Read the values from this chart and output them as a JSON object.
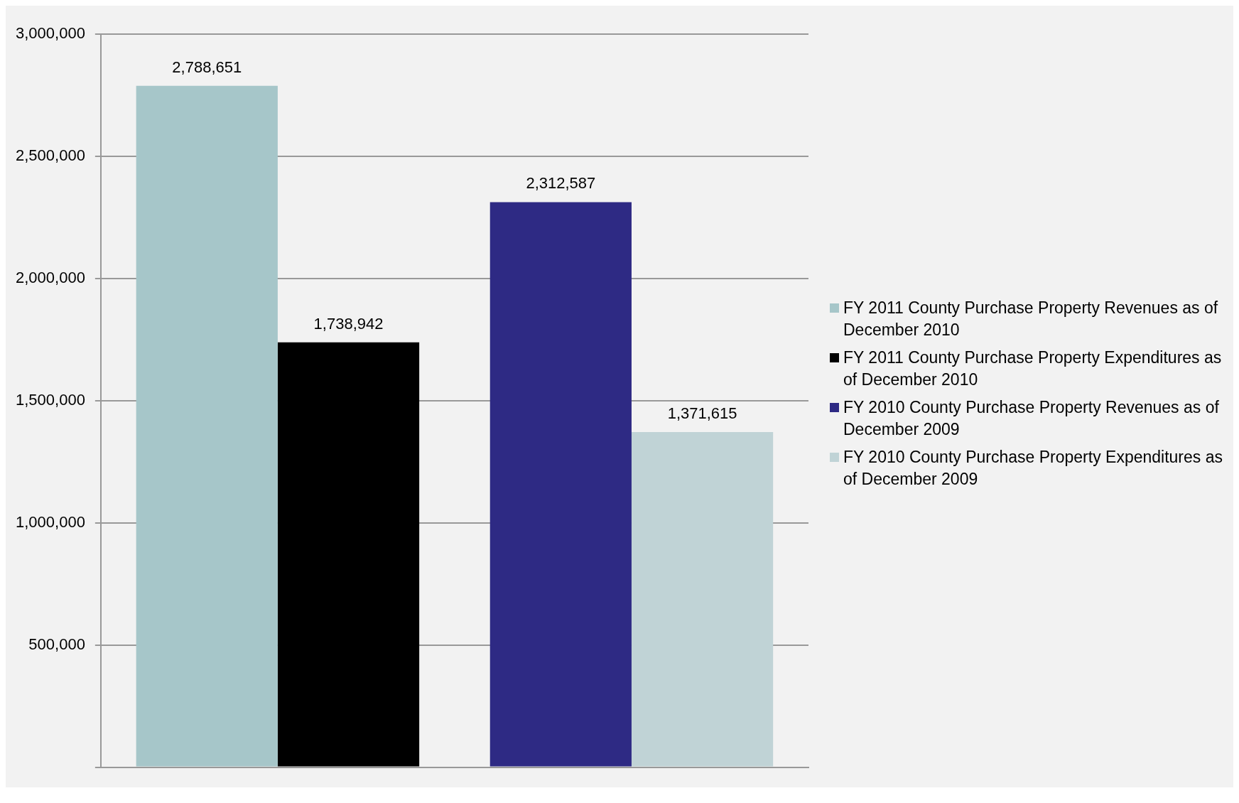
{
  "chart_data": {
    "type": "bar",
    "categories": [
      null,
      null
    ],
    "series": [
      {
        "name": "FY 2011 County Purchase Property Revenues as of December 2010",
        "color": "#a6c6c9",
        "values": [
          2788651,
          null
        ],
        "value_labels": [
          "2,788,651",
          null
        ]
      },
      {
        "name": "FY 2011 County Purchase Property Expenditures as of December 2010",
        "color": "#000000",
        "values": [
          1738942,
          null
        ],
        "value_labels": [
          "1,738,942",
          null
        ]
      },
      {
        "name": "FY 2010 County Purchase Property Revenues as of December 2009",
        "color": "#2e2a84",
        "values": [
          null,
          2312587
        ],
        "value_labels": [
          null,
          "2,312,587"
        ]
      },
      {
        "name": "FY 2010 County Purchase Property Expenditures as of December 2009",
        "color": "#c0d3d6",
        "values": [
          null,
          1371615
        ],
        "value_labels": [
          null,
          "1,371,615"
        ]
      }
    ],
    "ylim": [
      0,
      3000000
    ],
    "yticks": [
      {
        "value": 0,
        "label": null
      },
      {
        "value": 500000,
        "label": "500,000"
      },
      {
        "value": 1000000,
        "label": "1,000,000"
      },
      {
        "value": 1500000,
        "label": "1,500,000"
      },
      {
        "value": 2000000,
        "label": "2,000,000"
      },
      {
        "value": 2500000,
        "label": "2,500,000"
      },
      {
        "value": 3000000,
        "label": "3,000,000"
      }
    ],
    "grid": "y",
    "legend": "right"
  }
}
